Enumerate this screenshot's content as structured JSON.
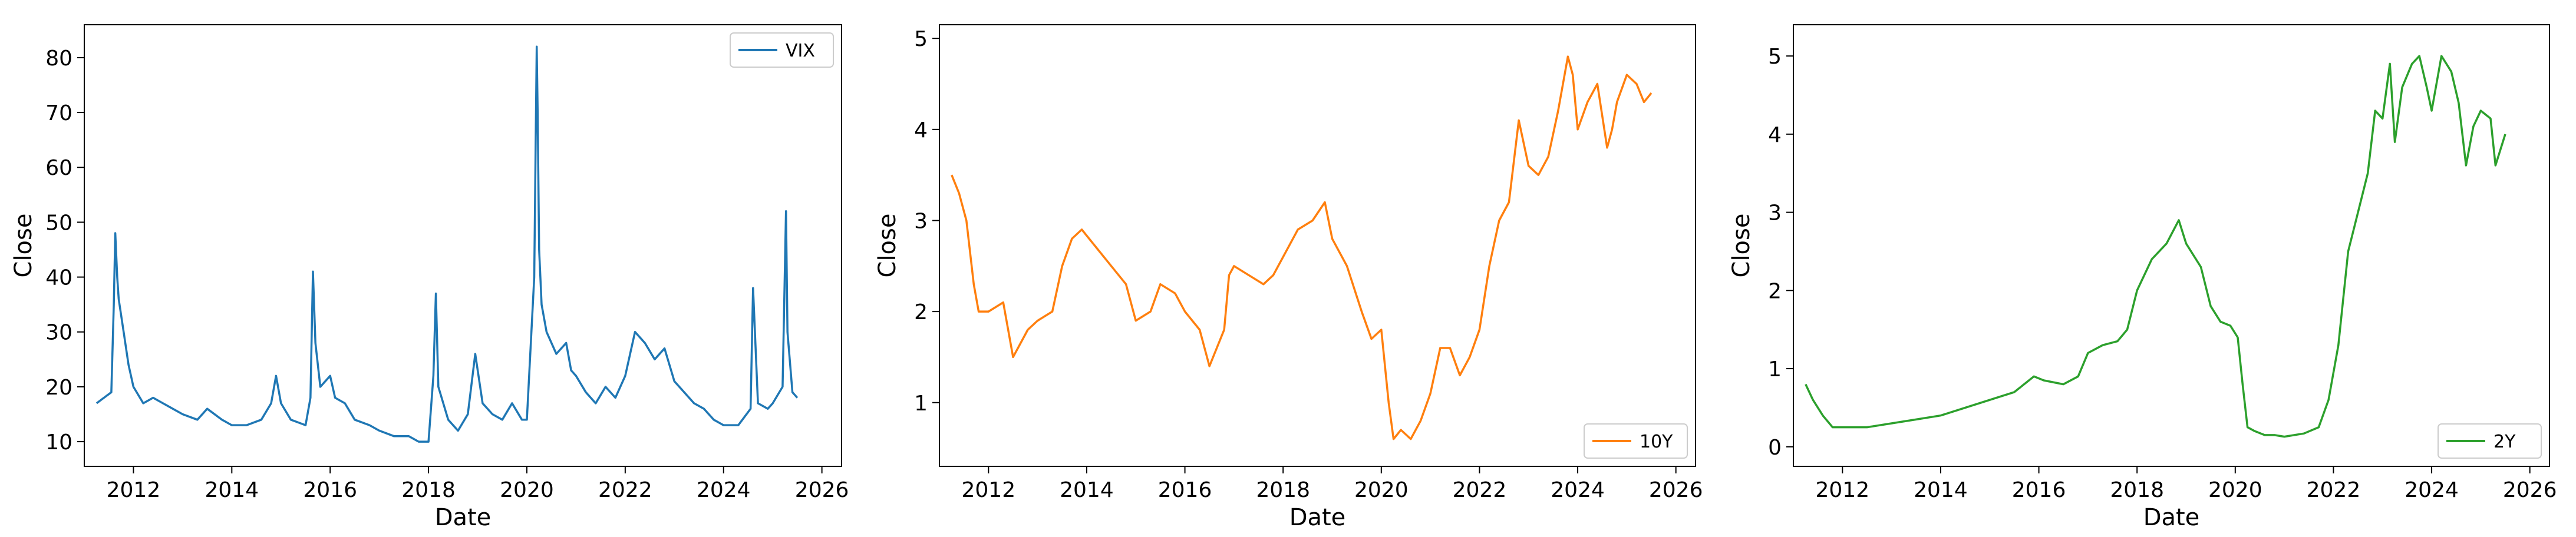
{
  "chart_data": [
    {
      "type": "line",
      "xlabel": "Date",
      "ylabel": "Close",
      "xlim": [
        2011.0,
        2026.4
      ],
      "ylim": [
        5.5,
        86
      ],
      "xticks": [
        2012,
        2014,
        2016,
        2018,
        2020,
        2022,
        2024,
        2026
      ],
      "yticks": [
        10,
        20,
        30,
        40,
        50,
        60,
        70,
        80
      ],
      "legend_placement": "upper-right",
      "grid": false,
      "series": [
        {
          "name": "VIX",
          "color": "#1f77b4",
          "x": [
            2011.25,
            2011.4,
            2011.55,
            2011.6,
            2011.63,
            2011.67,
            2011.7,
            2011.75,
            2011.8,
            2011.9,
            2012.0,
            2012.2,
            2012.4,
            2012.6,
            2012.8,
            2013.0,
            2013.3,
            2013.5,
            2013.8,
            2014.0,
            2014.3,
            2014.6,
            2014.8,
            2014.9,
            2015.0,
            2015.2,
            2015.5,
            2015.6,
            2015.65,
            2015.7,
            2015.8,
            2016.0,
            2016.1,
            2016.3,
            2016.5,
            2016.8,
            2017.0,
            2017.3,
            2017.6,
            2017.8,
            2018.0,
            2018.1,
            2018.15,
            2018.2,
            2018.4,
            2018.6,
            2018.8,
            2018.95,
            2019.1,
            2019.3,
            2019.5,
            2019.7,
            2019.9,
            2020.0,
            2020.15,
            2020.2,
            2020.22,
            2020.25,
            2020.3,
            2020.4,
            2020.6,
            2020.8,
            2020.9,
            2021.0,
            2021.2,
            2021.4,
            2021.6,
            2021.8,
            2022.0,
            2022.2,
            2022.4,
            2022.6,
            2022.8,
            2023.0,
            2023.2,
            2023.4,
            2023.6,
            2023.8,
            2024.0,
            2024.3,
            2024.55,
            2024.6,
            2024.7,
            2024.9,
            2025.0,
            2025.2,
            2025.27,
            2025.3,
            2025.4,
            2025.5
          ],
          "values": [
            17,
            18,
            19,
            35,
            48,
            40,
            36,
            33,
            30,
            24,
            20,
            17,
            18,
            17,
            16,
            15,
            14,
            16,
            14,
            13,
            13,
            14,
            17,
            22,
            17,
            14,
            13,
            18,
            41,
            28,
            20,
            22,
            18,
            17,
            14,
            13,
            12,
            11,
            11,
            10,
            10,
            22,
            37,
            20,
            14,
            12,
            15,
            26,
            17,
            15,
            14,
            17,
            14,
            14,
            40,
            82,
            70,
            45,
            35,
            30,
            26,
            28,
            23,
            22,
            19,
            17,
            20,
            18,
            22,
            30,
            28,
            25,
            27,
            21,
            19,
            17,
            16,
            14,
            13,
            13,
            16,
            38,
            17,
            16,
            17,
            20,
            52,
            30,
            19,
            18
          ]
        }
      ]
    },
    {
      "type": "line",
      "xlabel": "Date",
      "ylabel": "Close",
      "xlim": [
        2011.0,
        2026.4
      ],
      "ylim": [
        0.3,
        5.15
      ],
      "xticks": [
        2012,
        2014,
        2016,
        2018,
        2020,
        2022,
        2024,
        2026
      ],
      "yticks": [
        1,
        2,
        3,
        4,
        5
      ],
      "legend_placement": "lower-right",
      "grid": false,
      "series": [
        {
          "name": "10Y",
          "color": "#ff7f0e",
          "x": [
            2011.25,
            2011.4,
            2011.55,
            2011.7,
            2011.8,
            2012.0,
            2012.3,
            2012.5,
            2012.8,
            2013.0,
            2013.3,
            2013.5,
            2013.7,
            2013.9,
            2014.2,
            2014.5,
            2014.8,
            2015.0,
            2015.3,
            2015.5,
            2015.8,
            2016.0,
            2016.3,
            2016.5,
            2016.8,
            2016.9,
            2017.0,
            2017.3,
            2017.6,
            2017.8,
            2018.0,
            2018.3,
            2018.6,
            2018.85,
            2019.0,
            2019.3,
            2019.6,
            2019.8,
            2020.0,
            2020.15,
            2020.25,
            2020.4,
            2020.6,
            2020.8,
            2021.0,
            2021.2,
            2021.4,
            2021.6,
            2021.8,
            2022.0,
            2022.2,
            2022.4,
            2022.6,
            2022.8,
            2023.0,
            2023.2,
            2023.4,
            2023.6,
            2023.8,
            2023.9,
            2024.0,
            2024.2,
            2024.4,
            2024.6,
            2024.7,
            2024.8,
            2025.0,
            2025.2,
            2025.35,
            2025.5
          ],
          "values": [
            3.5,
            3.3,
            3.0,
            2.3,
            2.0,
            2.0,
            2.1,
            1.5,
            1.8,
            1.9,
            2.0,
            2.5,
            2.8,
            2.9,
            2.7,
            2.5,
            2.3,
            1.9,
            2.0,
            2.3,
            2.2,
            2.0,
            1.8,
            1.4,
            1.8,
            2.4,
            2.5,
            2.4,
            2.3,
            2.4,
            2.6,
            2.9,
            3.0,
            3.2,
            2.8,
            2.5,
            2.0,
            1.7,
            1.8,
            1.0,
            0.6,
            0.7,
            0.6,
            0.8,
            1.1,
            1.6,
            1.6,
            1.3,
            1.5,
            1.8,
            2.5,
            3.0,
            3.2,
            4.1,
            3.6,
            3.5,
            3.7,
            4.2,
            4.8,
            4.6,
            4.0,
            4.3,
            4.5,
            3.8,
            4.0,
            4.3,
            4.6,
            4.5,
            4.3,
            4.4
          ]
        }
      ]
    },
    {
      "type": "line",
      "xlabel": "Date",
      "ylabel": "Close",
      "xlim": [
        2011.0,
        2026.4
      ],
      "ylim": [
        -0.25,
        5.4
      ],
      "xticks": [
        2012,
        2014,
        2016,
        2018,
        2020,
        2022,
        2024,
        2026
      ],
      "yticks": [
        0,
        1,
        2,
        3,
        4,
        5
      ],
      "legend_placement": "lower-right",
      "grid": false,
      "series": [
        {
          "name": "2Y",
          "color": "#2ca02c",
          "x": [
            2011.25,
            2011.4,
            2011.6,
            2011.8,
            2012.0,
            2012.5,
            2013.0,
            2013.5,
            2014.0,
            2014.5,
            2015.0,
            2015.5,
            2015.9,
            2016.1,
            2016.5,
            2016.8,
            2017.0,
            2017.3,
            2017.6,
            2017.8,
            2018.0,
            2018.3,
            2018.6,
            2018.85,
            2019.0,
            2019.3,
            2019.5,
            2019.7,
            2019.9,
            2020.05,
            2020.15,
            2020.25,
            2020.4,
            2020.6,
            2020.8,
            2021.0,
            2021.4,
            2021.7,
            2021.9,
            2022.1,
            2022.3,
            2022.5,
            2022.7,
            2022.85,
            2023.0,
            2023.15,
            2023.25,
            2023.4,
            2023.6,
            2023.75,
            2023.9,
            2024.0,
            2024.2,
            2024.4,
            2024.55,
            2024.7,
            2024.85,
            2025.0,
            2025.2,
            2025.3,
            2025.5
          ],
          "values": [
            0.8,
            0.6,
            0.4,
            0.25,
            0.25,
            0.25,
            0.3,
            0.35,
            0.4,
            0.5,
            0.6,
            0.7,
            0.9,
            0.85,
            0.8,
            0.9,
            1.2,
            1.3,
            1.35,
            1.5,
            2.0,
            2.4,
            2.6,
            2.9,
            2.6,
            2.3,
            1.8,
            1.6,
            1.55,
            1.4,
            0.8,
            0.25,
            0.2,
            0.15,
            0.15,
            0.13,
            0.17,
            0.25,
            0.6,
            1.3,
            2.5,
            3.0,
            3.5,
            4.3,
            4.2,
            4.9,
            3.9,
            4.6,
            4.9,
            5.0,
            4.6,
            4.3,
            5.0,
            4.8,
            4.4,
            3.6,
            4.1,
            4.3,
            4.2,
            3.6,
            4.0
          ]
        }
      ]
    }
  ]
}
